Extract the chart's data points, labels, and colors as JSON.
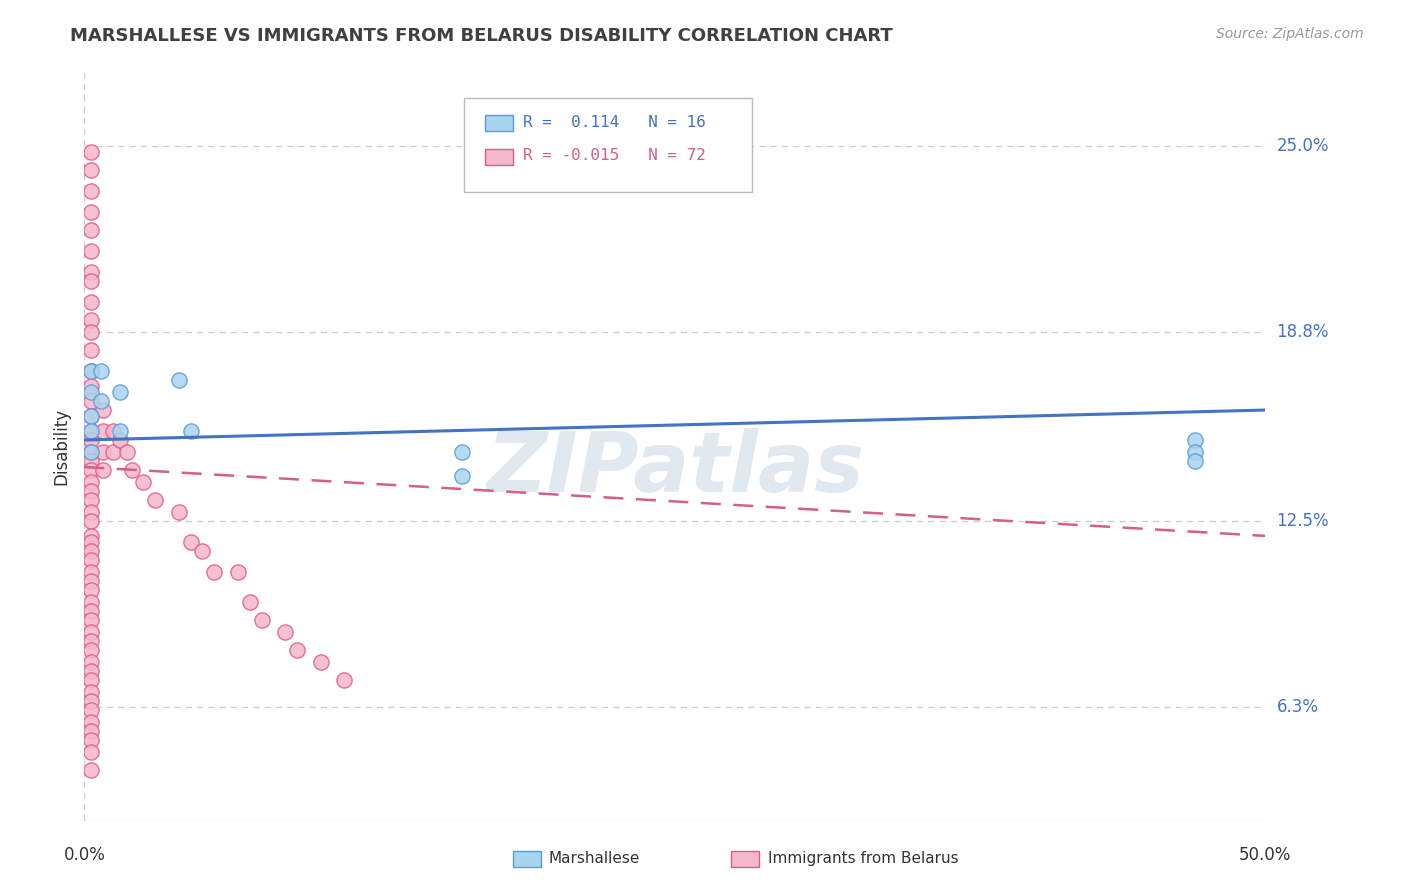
{
  "title": "MARSHALLESE VS IMMIGRANTS FROM BELARUS DISABILITY CORRELATION CHART",
  "source": "Source: ZipAtlas.com",
  "ylabel": "Disability",
  "yticks": [
    "25.0%",
    "18.8%",
    "12.5%",
    "6.3%"
  ],
  "ytick_vals": [
    0.25,
    0.188,
    0.125,
    0.063
  ],
  "xlim": [
    0.0,
    0.5
  ],
  "ylim": [
    0.025,
    0.275
  ],
  "marshallese_color": "#a8d4f0",
  "belarus_color": "#f5b8cb",
  "marshallese_edge_color": "#5b9bd5",
  "belarus_edge_color": "#e05a8a",
  "marshallese_line_color": "#4472c4",
  "belarus_line_color": "#d45f8a",
  "background_color": "#ffffff",
  "grid_color": "#cccccc",
  "watermark": "ZIPatlas",
  "marshallese_scatter_x": [
    0.003,
    0.003,
    0.003,
    0.003,
    0.003,
    0.007,
    0.007,
    0.015,
    0.015,
    0.04,
    0.045,
    0.16,
    0.16,
    0.47,
    0.47,
    0.47
  ],
  "marshallese_scatter_y": [
    0.175,
    0.168,
    0.16,
    0.155,
    0.148,
    0.175,
    0.165,
    0.168,
    0.155,
    0.172,
    0.155,
    0.148,
    0.14,
    0.152,
    0.148,
    0.145
  ],
  "belarus_scatter_x": [
    0.003,
    0.003,
    0.003,
    0.003,
    0.003,
    0.003,
    0.003,
    0.003,
    0.003,
    0.003,
    0.003,
    0.003,
    0.003,
    0.003,
    0.003,
    0.003,
    0.003,
    0.003,
    0.003,
    0.003,
    0.003,
    0.003,
    0.003,
    0.003,
    0.003,
    0.003,
    0.003,
    0.003,
    0.003,
    0.003,
    0.003,
    0.003,
    0.003,
    0.003,
    0.003,
    0.003,
    0.003,
    0.003,
    0.003,
    0.003,
    0.003,
    0.003,
    0.003,
    0.003,
    0.003,
    0.003,
    0.003,
    0.003,
    0.003,
    0.003,
    0.008,
    0.008,
    0.008,
    0.008,
    0.012,
    0.012,
    0.015,
    0.018,
    0.02,
    0.025,
    0.03,
    0.04,
    0.045,
    0.05,
    0.055,
    0.065,
    0.07,
    0.075,
    0.085,
    0.09,
    0.1,
    0.11
  ],
  "belarus_scatter_y": [
    0.248,
    0.242,
    0.235,
    0.228,
    0.222,
    0.215,
    0.208,
    0.205,
    0.198,
    0.192,
    0.188,
    0.182,
    0.175,
    0.17,
    0.165,
    0.16,
    0.155,
    0.152,
    0.148,
    0.145,
    0.142,
    0.138,
    0.135,
    0.132,
    0.128,
    0.125,
    0.12,
    0.118,
    0.115,
    0.112,
    0.108,
    0.105,
    0.102,
    0.098,
    0.095,
    0.092,
    0.088,
    0.085,
    0.082,
    0.078,
    0.075,
    0.072,
    0.068,
    0.065,
    0.062,
    0.058,
    0.055,
    0.052,
    0.048,
    0.042,
    0.162,
    0.155,
    0.148,
    0.142,
    0.155,
    0.148,
    0.152,
    0.148,
    0.142,
    0.138,
    0.132,
    0.128,
    0.118,
    0.115,
    0.108,
    0.108,
    0.098,
    0.092,
    0.088,
    0.082,
    0.078,
    0.072
  ],
  "marsh_line_x": [
    0.0,
    0.5
  ],
  "marsh_line_y": [
    0.152,
    0.162
  ],
  "bel_line_x": [
    0.0,
    0.5
  ],
  "bel_line_y": [
    0.143,
    0.12
  ]
}
